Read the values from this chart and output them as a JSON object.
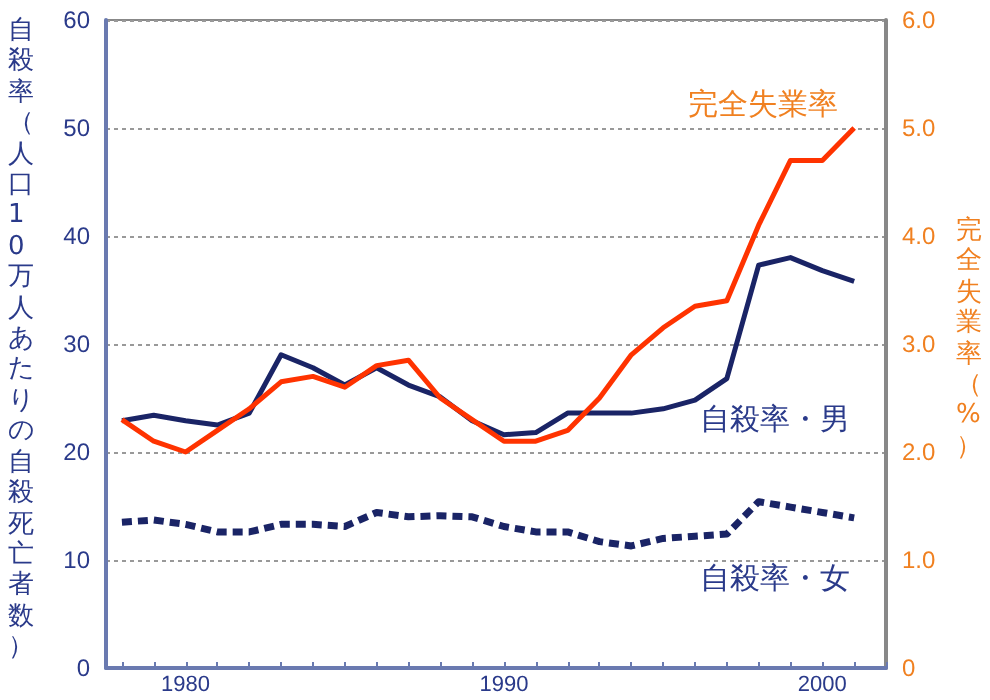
{
  "chart_data": {
    "type": "line",
    "ylabel": "自殺率（人口10万人あたりの自殺死亡者数）",
    "y2label": "完全失業率（%）",
    "x": [
      1978,
      1979,
      1980,
      1981,
      1982,
      1983,
      1984,
      1985,
      1986,
      1987,
      1988,
      1989,
      1990,
      1991,
      1992,
      1993,
      1994,
      1995,
      1996,
      1997,
      1998,
      1999,
      2000,
      2001
    ],
    "xlim": [
      1977.5,
      2002
    ],
    "xticks": [
      1980,
      1990,
      2000
    ],
    "ylim": [
      0,
      60
    ],
    "yticks": [
      0,
      10,
      20,
      30,
      40,
      50,
      60
    ],
    "y2lim": [
      0,
      6
    ],
    "y2ticks": [
      {
        "value": 0,
        "label": "0"
      },
      {
        "value": 1,
        "label": "1.0"
      },
      {
        "value": 2,
        "label": "2.0"
      },
      {
        "value": 3,
        "label": "3.0"
      },
      {
        "value": 4,
        "label": "4.0"
      },
      {
        "value": 5,
        "label": "5.0"
      },
      {
        "value": 6,
        "label": "6.0"
      }
    ],
    "grid": "y",
    "legend": false,
    "marker": "none",
    "series": [
      {
        "name": "自殺率・男",
        "color": "#1a2466",
        "line_style": "solid",
        "values": [
          22.9,
          23.4,
          22.9,
          22.5,
          23.6,
          29.0,
          27.8,
          26.2,
          27.8,
          26.2,
          25.1,
          22.9,
          21.6,
          21.8,
          23.6,
          23.6,
          23.6,
          24.0,
          24.8,
          26.8,
          37.3,
          38.0,
          36.8,
          35.8
        ]
      },
      {
        "name": "自殺率・女",
        "color": "#1a2466",
        "line_style": "dashed",
        "values": [
          13.5,
          13.7,
          13.3,
          12.6,
          12.6,
          13.3,
          13.3,
          13.1,
          14.4,
          14.0,
          14.1,
          14.0,
          13.1,
          12.6,
          12.6,
          11.7,
          11.3,
          12.0,
          12.2,
          12.4,
          15.4,
          14.9,
          14.4,
          13.9
        ]
      },
      {
        "name": "完全失業率",
        "color": "#ff3300",
        "line_style": "solid",
        "axis": "y2",
        "values": [
          2.3,
          2.1,
          2.0,
          2.2,
          2.4,
          2.65,
          2.7,
          2.6,
          2.8,
          2.85,
          2.5,
          2.3,
          2.1,
          2.1,
          2.2,
          2.5,
          2.9,
          3.15,
          3.35,
          3.4,
          4.1,
          4.7,
          4.7,
          5.0
        ]
      }
    ]
  }
}
